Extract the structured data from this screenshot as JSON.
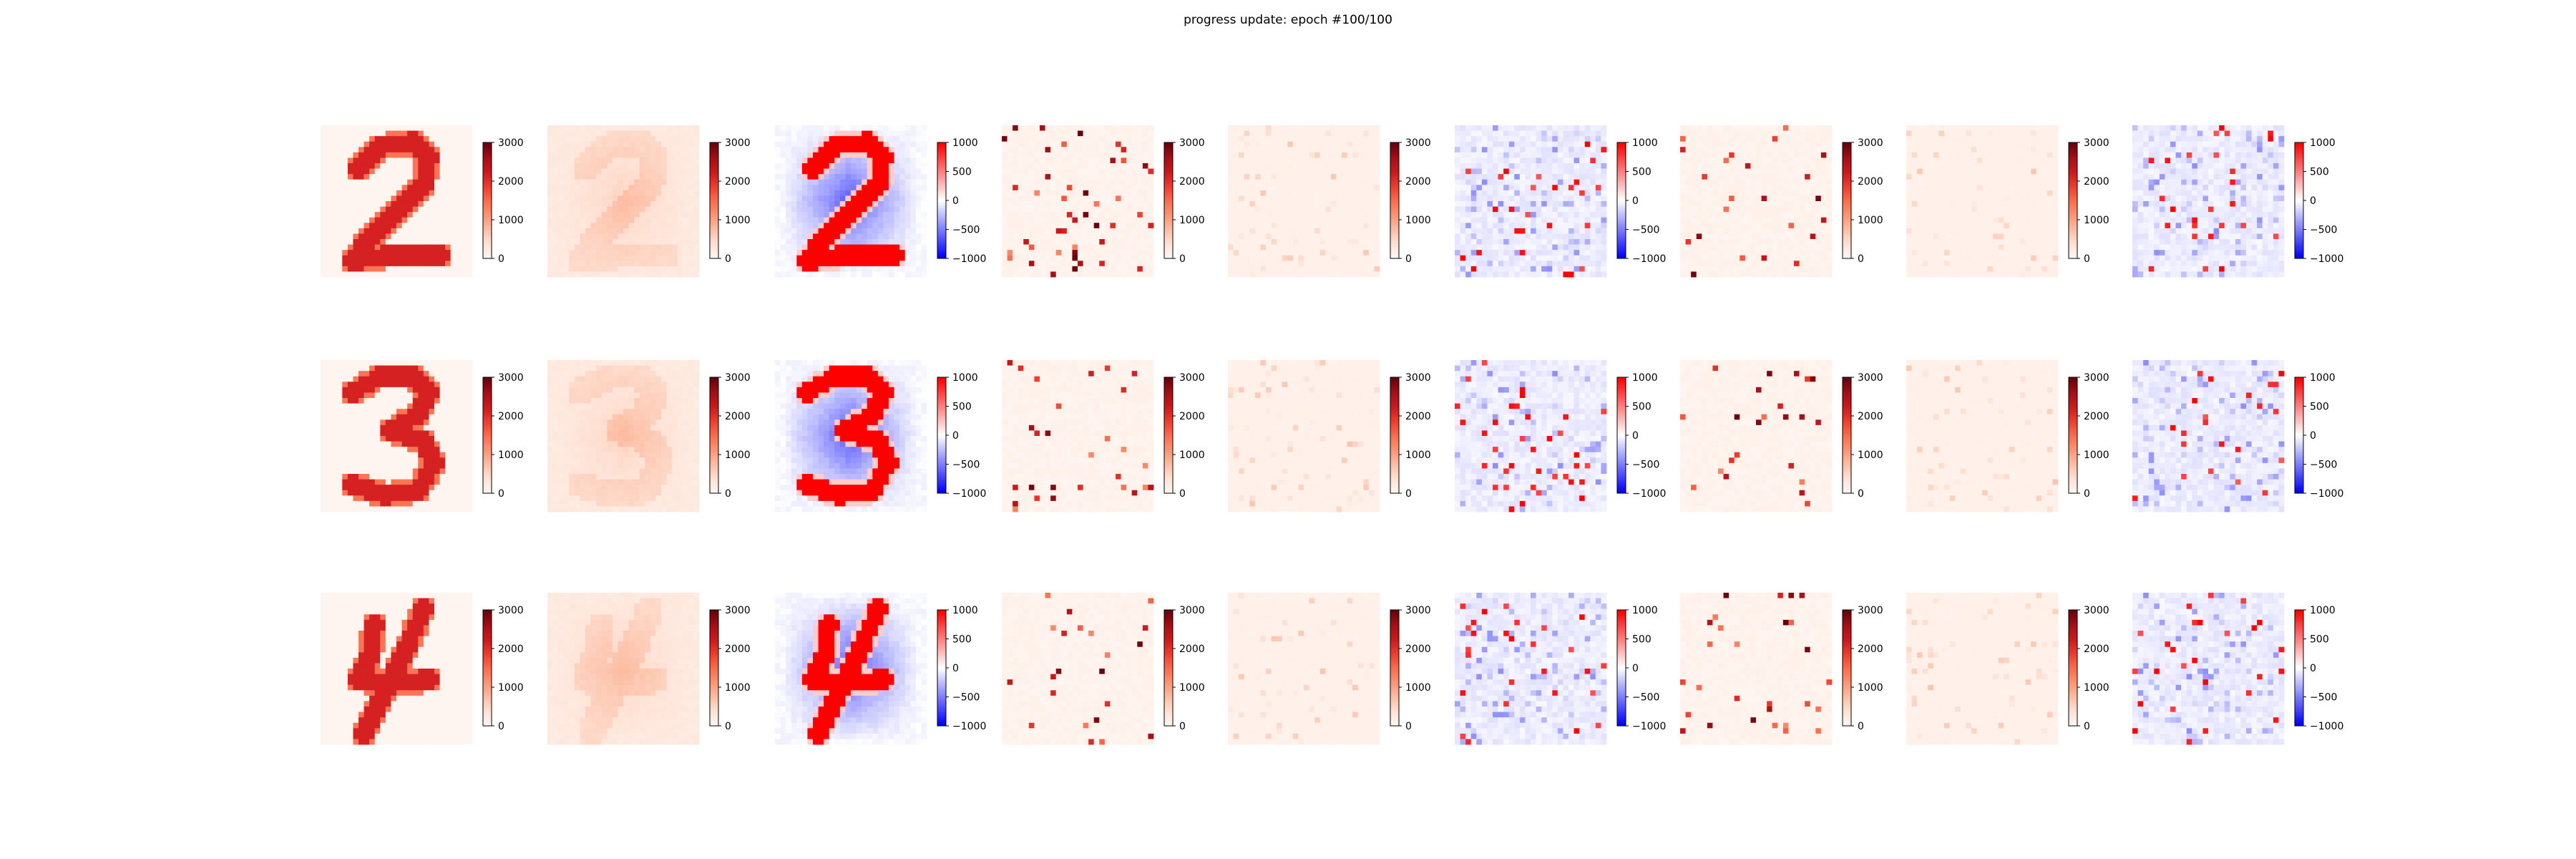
{
  "figure": {
    "title": "progress update: epoch #100/100"
  },
  "colors": {
    "reds_low": "#fff5f0",
    "reds_high": "#67000d",
    "bwr_low": "#0000ff",
    "bwr_mid": "#ffffff",
    "bwr_high": "#ff0000"
  },
  "chart_data": {
    "type": "heatmap",
    "grid": {
      "rows": 3,
      "cols": 9,
      "image_size": 28
    },
    "colorbar_types": {
      "reds": {
        "cmap": "Reds",
        "range": [
          0,
          3000
        ],
        "ticks": [
          0,
          1000,
          2000,
          3000
        ]
      },
      "bwr": {
        "cmap": "bwr",
        "range": [
          -1000,
          1000
        ],
        "ticks": [
          -1000,
          -500,
          0,
          500,
          1000
        ]
      }
    },
    "column_colorbars": [
      "reds",
      "reds",
      "bwr",
      "reds",
      "reds",
      "bwr",
      "reds",
      "reds",
      "bwr"
    ],
    "rows": [
      {
        "digit": "2",
        "panels": [
          "input",
          "reconstruction",
          "difference",
          "sparse-reds",
          "sparse-faint",
          "sparse-bwr",
          "sparse-reds",
          "sparse-faint",
          "sparse-bwr"
        ]
      },
      {
        "digit": "3",
        "panels": [
          "input",
          "reconstruction",
          "difference",
          "sparse-reds",
          "sparse-faint",
          "sparse-bwr",
          "sparse-reds",
          "sparse-faint",
          "sparse-bwr"
        ]
      },
      {
        "digit": "4",
        "panels": [
          "input",
          "reconstruction",
          "difference",
          "sparse-reds",
          "sparse-faint",
          "sparse-bwr",
          "sparse-reds",
          "sparse-faint",
          "sparse-bwr"
        ]
      }
    ],
    "grid_lines": false,
    "legend": "none"
  }
}
